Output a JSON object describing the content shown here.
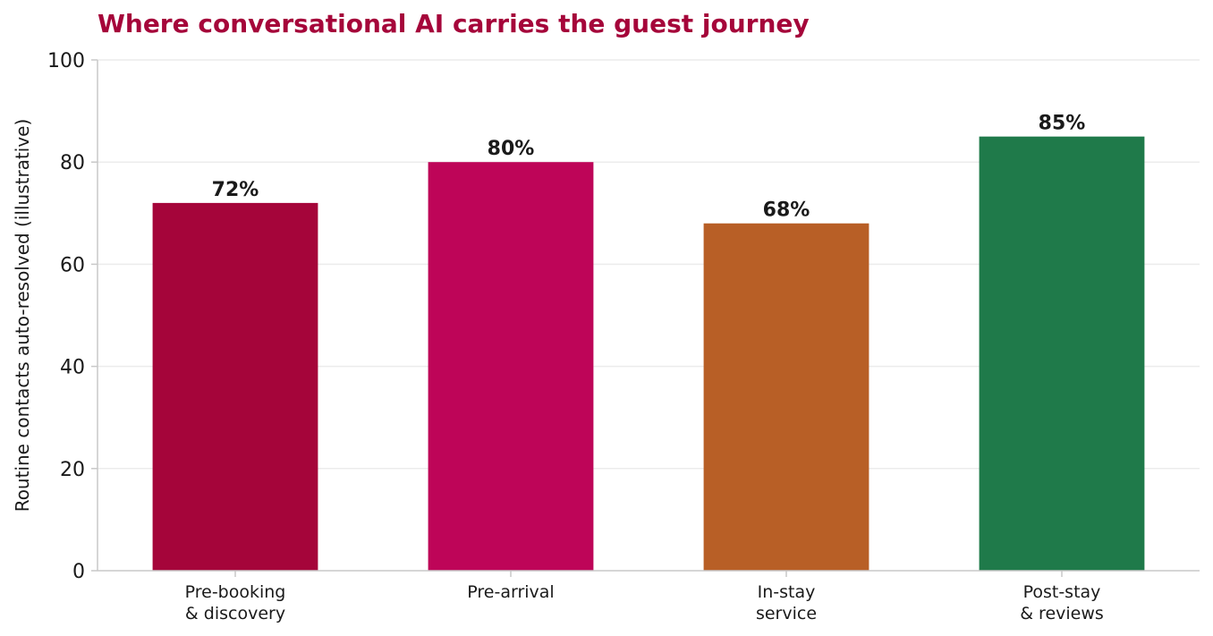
{
  "chart_data": {
    "type": "bar",
    "title": "Where conversational AI carries the guest journey",
    "xlabel": "",
    "ylabel": "Routine contacts auto-resolved (illustrative)",
    "categories": [
      [
        "Pre-booking",
        "& discovery"
      ],
      [
        "Pre-arrival"
      ],
      [
        "In-stay",
        "service"
      ],
      [
        "Post-stay",
        "& reviews"
      ]
    ],
    "values": [
      72,
      80,
      68,
      85
    ],
    "value_labels": [
      "72%",
      "80%",
      "68%",
      "85%"
    ],
    "colors": [
      "#a5053a",
      "#be0558",
      "#b85f26",
      "#1f7a4a"
    ],
    "ylim": [
      0,
      100
    ],
    "yticks": [
      0,
      20,
      40,
      60,
      80,
      100
    ],
    "grid": true,
    "legend": "none"
  },
  "colors": {
    "title": "#a5053a",
    "grid": "#ececec",
    "axis": "#c8c8c8",
    "text": "#1a1a1a"
  }
}
